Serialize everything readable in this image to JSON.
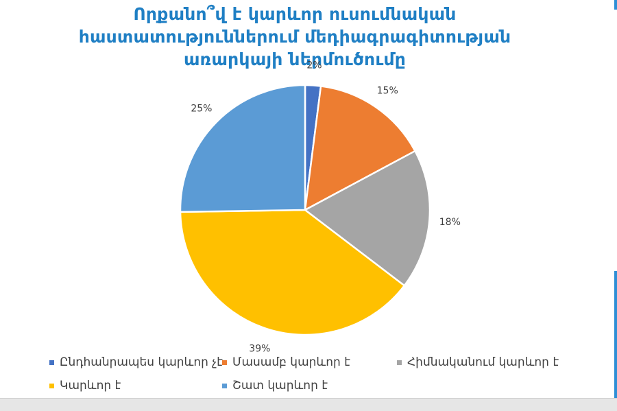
{
  "title_lines": [
    "Որքանո՞վ է կարևոր  ուսումնական",
    "հաստատություններում մեդիագրագիտության",
    "առարկայի ներմուծումը"
  ],
  "chart_data": {
    "type": "pie",
    "title": "Որքանո՞վ է կարևոր  ուսումնական հաստատություններում մեդիագրագիտության առարկայի ներմուծումը",
    "start_angle_deg": 0,
    "direction": "clockwise",
    "legend_position": "bottom",
    "slices": [
      {
        "label": "Ընդհանրապես կարևոր չէ",
        "value": 2,
        "value_label": "2%",
        "color": "#4472c4"
      },
      {
        "label": "Մասամբ կարևոր է",
        "value": 15,
        "value_label": "15%",
        "color": "#ed7d31"
      },
      {
        "label": "Հիմնականում կարևոր է",
        "value": 18,
        "value_label": "18%",
        "color": "#a5a5a5"
      },
      {
        "label": "Կարևոր է",
        "value": 39,
        "value_label": "39%",
        "color": "#ffc000"
      },
      {
        "label": "Շատ կարևոր է",
        "value": 25,
        "value_label": "25%",
        "color": "#5b9bd5"
      }
    ]
  }
}
